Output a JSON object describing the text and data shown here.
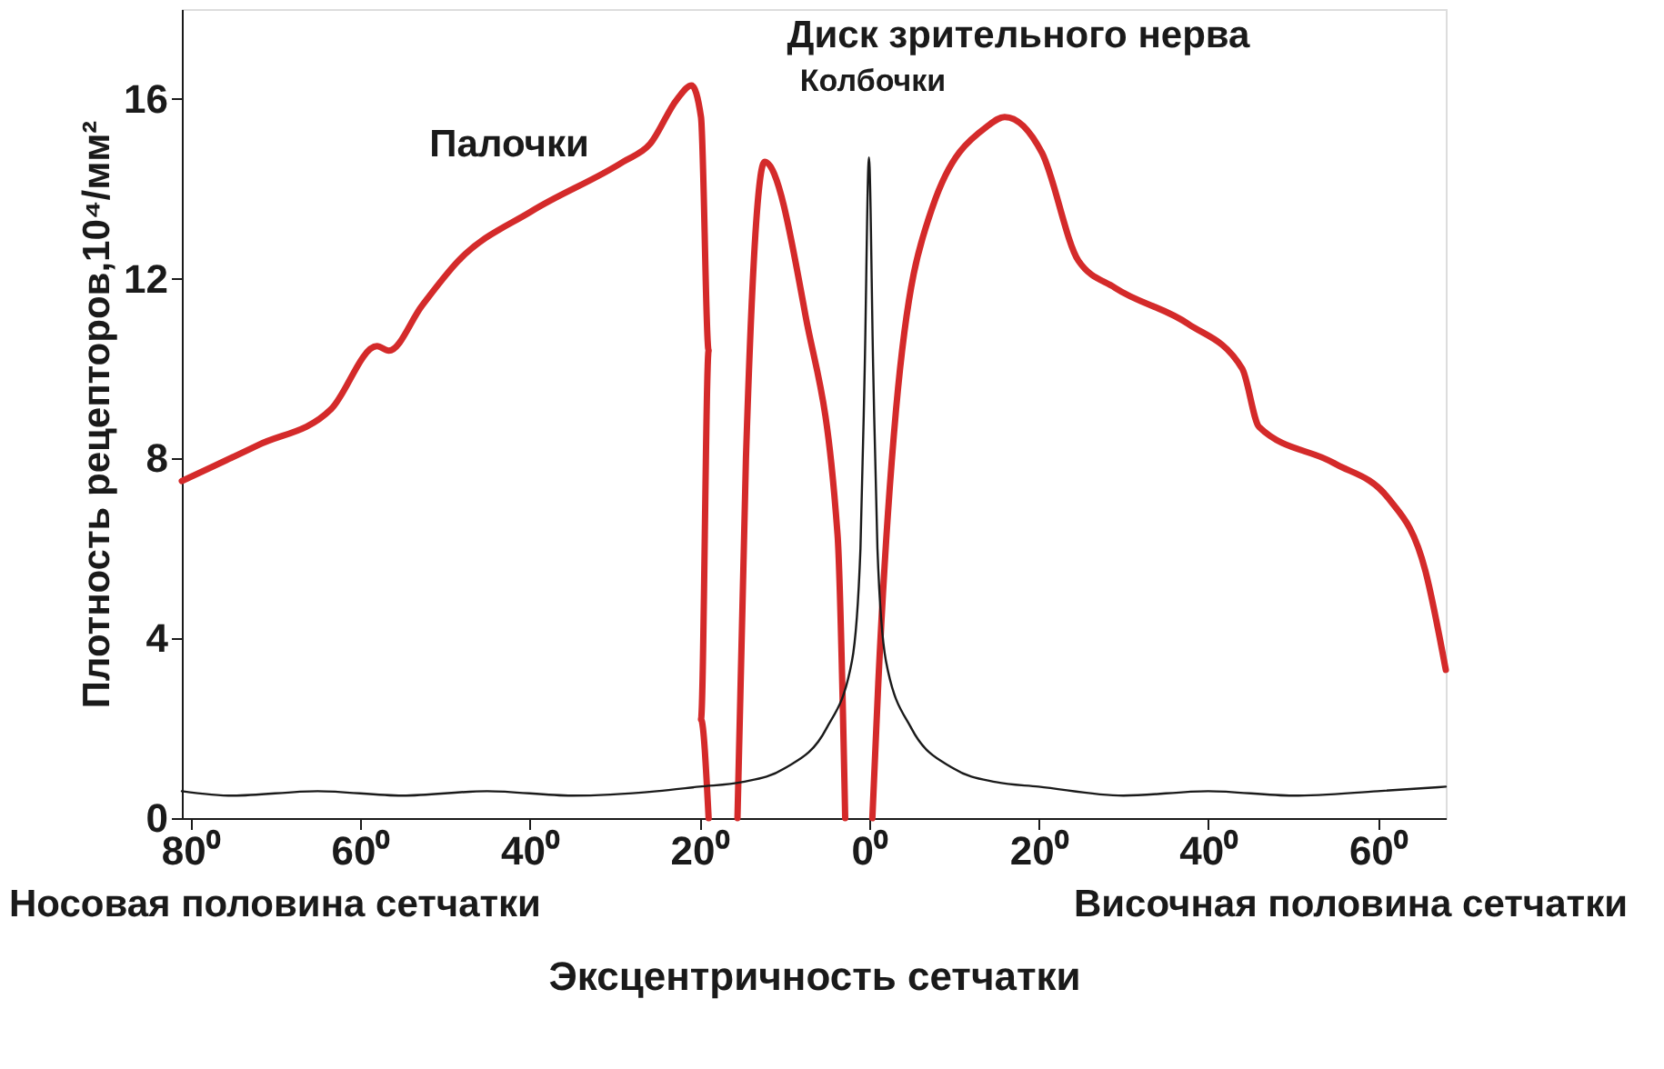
{
  "chart_data": {
    "type": "line",
    "ylabel": "Плотность рецепторов,10⁴/мм²",
    "xlabel": "Эксцентричность сетчатки",
    "xlim": [
      -81,
      68
    ],
    "ylim": [
      0,
      18
    ],
    "xticks": [
      {
        "value": -80,
        "label": "80⁰"
      },
      {
        "value": -60,
        "label": "60⁰"
      },
      {
        "value": -40,
        "label": "40⁰"
      },
      {
        "value": -20,
        "label": "20⁰"
      },
      {
        "value": 0,
        "label": "0⁰"
      },
      {
        "value": 20,
        "label": "20⁰"
      },
      {
        "value": 40,
        "label": "40⁰"
      },
      {
        "value": 60,
        "label": "60⁰"
      }
    ],
    "yticks": [
      0,
      4,
      8,
      12,
      16
    ],
    "grid": false,
    "marker": "none",
    "line_style": "solid",
    "series": [
      {
        "color": "#d42a2a",
        "x": [
          -81,
          -72,
          -63.4,
          -58,
          -56.6,
          -52.7,
          -48.4,
          -39.8,
          -29,
          -25.8,
          -22.6,
          -20.9,
          -19.8,
          -18.9,
          -19.8,
          -18.9,
          null,
          -15.5,
          -14.5,
          -12.3,
          -7.5,
          -3.7,
          -2.8,
          null,
          0.4,
          1.1,
          3.2,
          7.5,
          14,
          16,
          20.4,
          24.7,
          29,
          37.6,
          44,
          46,
          54.8,
          61.3,
          65.6,
          68
        ],
        "values": [
          7.5,
          8.3,
          9.1,
          10.5,
          10.4,
          11.4,
          12.4,
          13.5,
          14.6,
          15.0,
          16.0,
          16.3,
          15.6,
          10.4,
          2.2,
          0,
          null,
          0,
          8,
          14.6,
          11.2,
          6.3,
          0,
          null,
          0,
          3.0,
          9.1,
          13.6,
          15.4,
          15.6,
          14.8,
          12.4,
          11.8,
          11.0,
          10.0,
          8.7,
          7.9,
          7.1,
          5.5,
          3.3
        ]
      },
      {
        "color": "#1a1a1a",
        "x": [
          -81,
          -75,
          -65,
          -55,
          -45,
          -35,
          -25,
          -20,
          -15,
          -10,
          -5,
          -2,
          -1,
          -0.5,
          0,
          0.5,
          1,
          2,
          5,
          10,
          15,
          20,
          30,
          40,
          50,
          60,
          68
        ],
        "values": [
          0.6,
          0.5,
          0.6,
          0.5,
          0.6,
          0.5,
          0.6,
          0.7,
          0.8,
          1.1,
          2.0,
          3.5,
          6,
          10,
          14.7,
          10,
          6,
          3.5,
          2.0,
          1.1,
          0.8,
          0.7,
          0.5,
          0.6,
          0.5,
          0.6,
          0.7
        ]
      }
    ],
    "annotations": [
      "Палочки",
      "Колбочки",
      "Диск зрительного нерва",
      "Носовая половина сетчатки",
      "Височная половина сетчатки"
    ]
  }
}
